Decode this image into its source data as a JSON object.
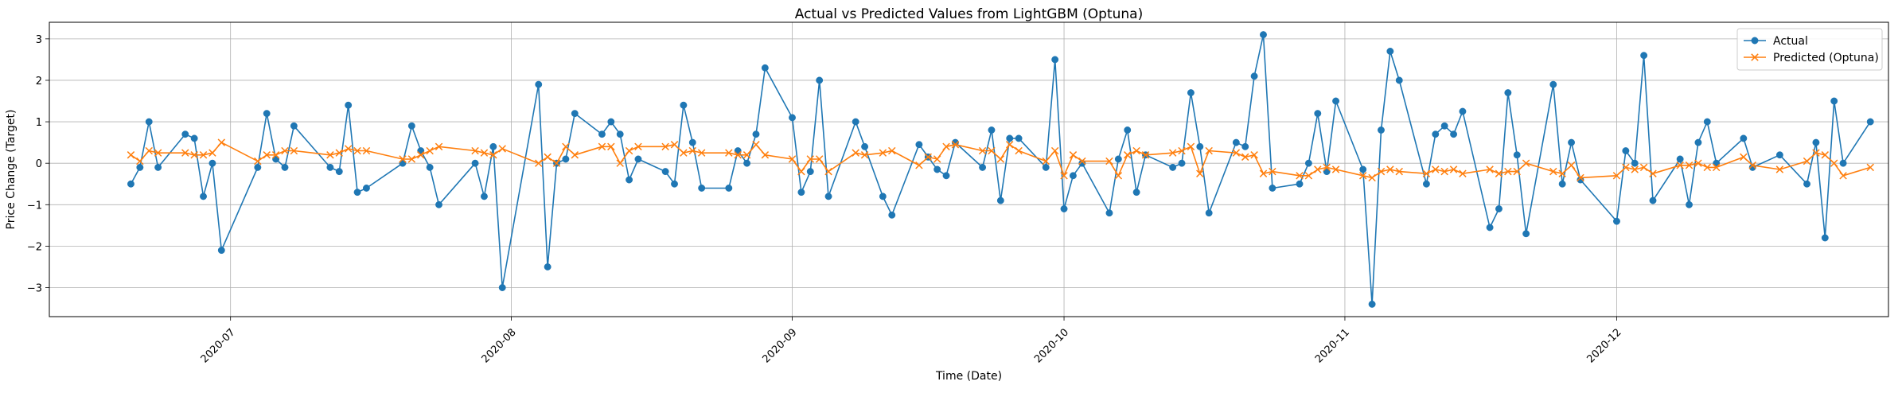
{
  "chart_data": {
    "type": "line",
    "title": "Actual vs Predicted Values from LightGBM (Optuna)",
    "xlabel": "Time (Date)",
    "ylabel": "Price Change (Target)",
    "x_type": "date",
    "xlim": [
      "2020-06-11",
      "2020-12-31"
    ],
    "ylim": [
      -3.7,
      3.4
    ],
    "x_ticks": [
      "2020-07-01",
      "2020-08-01",
      "2020-09-01",
      "2020-10-01",
      "2020-11-01",
      "2020-12-01"
    ],
    "x_tick_labels": [
      "2020-07",
      "2020-08",
      "2020-09",
      "2020-10",
      "2020-11",
      "2020-12"
    ],
    "y_ticks": [
      -3,
      -2,
      -1,
      0,
      1,
      2,
      3
    ],
    "y_tick_labels": [
      "−3",
      "−2",
      "−1",
      "0",
      "1",
      "2",
      "3"
    ],
    "grid": true,
    "legend_position": "upper-right",
    "series": [
      {
        "name": "Actual",
        "color": "#1f77b4",
        "marker": "circle",
        "points": [
          [
            "2020-06-20",
            -0.5
          ],
          [
            "2020-06-21",
            -0.1
          ],
          [
            "2020-06-22",
            1.0
          ],
          [
            "2020-06-23",
            -0.1
          ],
          [
            "2020-06-26",
            0.7
          ],
          [
            "2020-06-27",
            0.6
          ],
          [
            "2020-06-28",
            -0.8
          ],
          [
            "2020-06-29",
            0.0
          ],
          [
            "2020-06-30",
            -2.1
          ],
          [
            "2020-07-04",
            -0.1
          ],
          [
            "2020-07-05",
            1.2
          ],
          [
            "2020-07-06",
            0.1
          ],
          [
            "2020-07-07",
            -0.1
          ],
          [
            "2020-07-08",
            0.9
          ],
          [
            "2020-07-12",
            -0.1
          ],
          [
            "2020-07-13",
            -0.2
          ],
          [
            "2020-07-14",
            1.4
          ],
          [
            "2020-07-15",
            -0.7
          ],
          [
            "2020-07-16",
            -0.6
          ],
          [
            "2020-07-20",
            0.0
          ],
          [
            "2020-07-21",
            0.9
          ],
          [
            "2020-07-22",
            0.3
          ],
          [
            "2020-07-23",
            -0.1
          ],
          [
            "2020-07-24",
            -1.0
          ],
          [
            "2020-07-28",
            0.0
          ],
          [
            "2020-07-29",
            -0.8
          ],
          [
            "2020-07-30",
            0.4
          ],
          [
            "2020-07-31",
            -3.0
          ],
          [
            "2020-08-04",
            1.9
          ],
          [
            "2020-08-05",
            -2.5
          ],
          [
            "2020-08-06",
            0.0
          ],
          [
            "2020-08-07",
            0.1
          ],
          [
            "2020-08-08",
            1.2
          ],
          [
            "2020-08-11",
            0.7
          ],
          [
            "2020-08-12",
            1.0
          ],
          [
            "2020-08-13",
            0.7
          ],
          [
            "2020-08-14",
            -0.4
          ],
          [
            "2020-08-15",
            0.1
          ],
          [
            "2020-08-18",
            -0.2
          ],
          [
            "2020-08-19",
            -0.5
          ],
          [
            "2020-08-20",
            1.4
          ],
          [
            "2020-08-21",
            0.5
          ],
          [
            "2020-08-22",
            -0.6
          ],
          [
            "2020-08-25",
            -0.6
          ],
          [
            "2020-08-26",
            0.3
          ],
          [
            "2020-08-27",
            0.0
          ],
          [
            "2020-08-28",
            0.7
          ],
          [
            "2020-08-29",
            2.3
          ],
          [
            "2020-09-01",
            1.1
          ],
          [
            "2020-09-02",
            -0.7
          ],
          [
            "2020-09-03",
            -0.2
          ],
          [
            "2020-09-04",
            2.0
          ],
          [
            "2020-09-05",
            -0.8
          ],
          [
            "2020-09-08",
            1.0
          ],
          [
            "2020-09-09",
            0.4
          ],
          [
            "2020-09-11",
            -0.8
          ],
          [
            "2020-09-12",
            -1.25
          ],
          [
            "2020-09-15",
            0.45
          ],
          [
            "2020-09-16",
            0.15
          ],
          [
            "2020-09-17",
            -0.15
          ],
          [
            "2020-09-18",
            -0.3
          ],
          [
            "2020-09-19",
            0.5
          ],
          [
            "2020-09-22",
            -0.1
          ],
          [
            "2020-09-23",
            0.8
          ],
          [
            "2020-09-24",
            -0.9
          ],
          [
            "2020-09-25",
            0.6
          ],
          [
            "2020-09-26",
            0.6
          ],
          [
            "2020-09-29",
            -0.1
          ],
          [
            "2020-09-30",
            2.5
          ],
          [
            "2020-10-01",
            -1.1
          ],
          [
            "2020-10-02",
            -0.3
          ],
          [
            "2020-10-03",
            0.0
          ],
          [
            "2020-10-06",
            -1.2
          ],
          [
            "2020-10-07",
            0.1
          ],
          [
            "2020-10-08",
            0.8
          ],
          [
            "2020-10-09",
            -0.7
          ],
          [
            "2020-10-10",
            0.2
          ],
          [
            "2020-10-13",
            -0.1
          ],
          [
            "2020-10-14",
            0.0
          ],
          [
            "2020-10-15",
            1.7
          ],
          [
            "2020-10-16",
            0.4
          ],
          [
            "2020-10-17",
            -1.2
          ],
          [
            "2020-10-20",
            0.5
          ],
          [
            "2020-10-21",
            0.4
          ],
          [
            "2020-10-22",
            2.1
          ],
          [
            "2020-10-23",
            3.1
          ],
          [
            "2020-10-24",
            -0.6
          ],
          [
            "2020-10-27",
            -0.5
          ],
          [
            "2020-10-28",
            0.0
          ],
          [
            "2020-10-29",
            1.2
          ],
          [
            "2020-10-30",
            -0.2
          ],
          [
            "2020-10-31",
            1.5
          ],
          [
            "2020-11-03",
            -0.15
          ],
          [
            "2020-11-04",
            -3.4
          ],
          [
            "2020-11-05",
            0.8
          ],
          [
            "2020-11-06",
            2.7
          ],
          [
            "2020-11-07",
            2.0
          ],
          [
            "2020-11-10",
            -0.5
          ],
          [
            "2020-11-11",
            0.7
          ],
          [
            "2020-11-12",
            0.9
          ],
          [
            "2020-11-13",
            0.7
          ],
          [
            "2020-11-14",
            1.25
          ],
          [
            "2020-11-17",
            -1.55
          ],
          [
            "2020-11-18",
            -1.1
          ],
          [
            "2020-11-19",
            1.7
          ],
          [
            "2020-11-20",
            0.2
          ],
          [
            "2020-11-21",
            -1.7
          ],
          [
            "2020-11-24",
            1.9
          ],
          [
            "2020-11-25",
            -0.5
          ],
          [
            "2020-11-26",
            0.5
          ],
          [
            "2020-11-27",
            -0.4
          ],
          [
            "2020-12-01",
            -1.4
          ],
          [
            "2020-12-02",
            0.3
          ],
          [
            "2020-12-03",
            0.0
          ],
          [
            "2020-12-04",
            2.6
          ],
          [
            "2020-12-05",
            -0.9
          ],
          [
            "2020-12-08",
            0.1
          ],
          [
            "2020-12-09",
            -1.0
          ],
          [
            "2020-12-10",
            0.5
          ],
          [
            "2020-12-11",
            1.0
          ],
          [
            "2020-12-12",
            0.0
          ],
          [
            "2020-12-15",
            0.6
          ],
          [
            "2020-12-16",
            -0.1
          ],
          [
            "2020-12-19",
            0.2
          ],
          [
            "2020-12-22",
            -0.5
          ],
          [
            "2020-12-23",
            0.5
          ],
          [
            "2020-12-24",
            -1.8
          ],
          [
            "2020-12-25",
            1.5
          ],
          [
            "2020-12-26",
            0.0
          ],
          [
            "2020-12-29",
            1.0
          ]
        ]
      },
      {
        "name": "Predicted (Optuna)",
        "color": "#ff7f0e",
        "marker": "x",
        "points": [
          [
            "2020-06-20",
            0.2
          ],
          [
            "2020-06-21",
            0.05
          ],
          [
            "2020-06-22",
            0.3
          ],
          [
            "2020-06-23",
            0.25
          ],
          [
            "2020-06-26",
            0.25
          ],
          [
            "2020-06-27",
            0.2
          ],
          [
            "2020-06-28",
            0.2
          ],
          [
            "2020-06-29",
            0.25
          ],
          [
            "2020-06-30",
            0.5
          ],
          [
            "2020-07-04",
            0.05
          ],
          [
            "2020-07-05",
            0.2
          ],
          [
            "2020-07-06",
            0.2
          ],
          [
            "2020-07-07",
            0.3
          ],
          [
            "2020-07-08",
            0.3
          ],
          [
            "2020-07-12",
            0.2
          ],
          [
            "2020-07-13",
            0.25
          ],
          [
            "2020-07-14",
            0.35
          ],
          [
            "2020-07-15",
            0.3
          ],
          [
            "2020-07-16",
            0.3
          ],
          [
            "2020-07-20",
            0.1
          ],
          [
            "2020-07-21",
            0.1
          ],
          [
            "2020-07-22",
            0.2
          ],
          [
            "2020-07-23",
            0.3
          ],
          [
            "2020-07-24",
            0.4
          ],
          [
            "2020-07-28",
            0.3
          ],
          [
            "2020-07-29",
            0.25
          ],
          [
            "2020-07-30",
            0.2
          ],
          [
            "2020-07-31",
            0.35
          ],
          [
            "2020-08-04",
            0.0
          ],
          [
            "2020-08-05",
            0.15
          ],
          [
            "2020-08-06",
            0.0
          ],
          [
            "2020-08-07",
            0.4
          ],
          [
            "2020-08-08",
            0.2
          ],
          [
            "2020-08-11",
            0.4
          ],
          [
            "2020-08-12",
            0.4
          ],
          [
            "2020-08-13",
            0.0
          ],
          [
            "2020-08-14",
            0.3
          ],
          [
            "2020-08-15",
            0.4
          ],
          [
            "2020-08-18",
            0.4
          ],
          [
            "2020-08-19",
            0.45
          ],
          [
            "2020-08-20",
            0.25
          ],
          [
            "2020-08-21",
            0.3
          ],
          [
            "2020-08-22",
            0.25
          ],
          [
            "2020-08-25",
            0.25
          ],
          [
            "2020-08-26",
            0.2
          ],
          [
            "2020-08-27",
            0.2
          ],
          [
            "2020-08-28",
            0.45
          ],
          [
            "2020-08-29",
            0.2
          ],
          [
            "2020-09-01",
            0.1
          ],
          [
            "2020-09-02",
            -0.2
          ],
          [
            "2020-09-03",
            0.1
          ],
          [
            "2020-09-04",
            0.1
          ],
          [
            "2020-09-05",
            -0.2
          ],
          [
            "2020-09-08",
            0.25
          ],
          [
            "2020-09-09",
            0.2
          ],
          [
            "2020-09-11",
            0.25
          ],
          [
            "2020-09-12",
            0.3
          ],
          [
            "2020-09-15",
            -0.05
          ],
          [
            "2020-09-16",
            0.15
          ],
          [
            "2020-09-17",
            0.1
          ],
          [
            "2020-09-18",
            0.4
          ],
          [
            "2020-09-19",
            0.45
          ],
          [
            "2020-09-22",
            0.3
          ],
          [
            "2020-09-23",
            0.3
          ],
          [
            "2020-09-24",
            0.1
          ],
          [
            "2020-09-25",
            0.45
          ],
          [
            "2020-09-26",
            0.3
          ],
          [
            "2020-09-29",
            0.05
          ],
          [
            "2020-09-30",
            0.3
          ],
          [
            "2020-10-01",
            -0.3
          ],
          [
            "2020-10-02",
            0.2
          ],
          [
            "2020-10-03",
            0.05
          ],
          [
            "2020-10-06",
            0.05
          ],
          [
            "2020-10-07",
            -0.3
          ],
          [
            "2020-10-08",
            0.2
          ],
          [
            "2020-10-09",
            0.3
          ],
          [
            "2020-10-10",
            0.2
          ],
          [
            "2020-10-13",
            0.25
          ],
          [
            "2020-10-14",
            0.3
          ],
          [
            "2020-10-15",
            0.4
          ],
          [
            "2020-10-16",
            -0.25
          ],
          [
            "2020-10-17",
            0.3
          ],
          [
            "2020-10-20",
            0.25
          ],
          [
            "2020-10-21",
            0.15
          ],
          [
            "2020-10-22",
            0.2
          ],
          [
            "2020-10-23",
            -0.25
          ],
          [
            "2020-10-24",
            -0.2
          ],
          [
            "2020-10-27",
            -0.3
          ],
          [
            "2020-10-28",
            -0.3
          ],
          [
            "2020-10-29",
            -0.15
          ],
          [
            "2020-10-30",
            -0.1
          ],
          [
            "2020-10-31",
            -0.15
          ],
          [
            "2020-11-03",
            -0.3
          ],
          [
            "2020-11-04",
            -0.35
          ],
          [
            "2020-11-05",
            -0.2
          ],
          [
            "2020-11-06",
            -0.15
          ],
          [
            "2020-11-07",
            -0.2
          ],
          [
            "2020-11-10",
            -0.25
          ],
          [
            "2020-11-11",
            -0.15
          ],
          [
            "2020-11-12",
            -0.2
          ],
          [
            "2020-11-13",
            -0.15
          ],
          [
            "2020-11-14",
            -0.25
          ],
          [
            "2020-11-17",
            -0.15
          ],
          [
            "2020-11-18",
            -0.25
          ],
          [
            "2020-11-19",
            -0.2
          ],
          [
            "2020-11-20",
            -0.2
          ],
          [
            "2020-11-21",
            0.0
          ],
          [
            "2020-11-24",
            -0.2
          ],
          [
            "2020-11-25",
            -0.25
          ],
          [
            "2020-11-26",
            -0.05
          ],
          [
            "2020-11-27",
            -0.35
          ],
          [
            "2020-12-01",
            -0.3
          ],
          [
            "2020-12-02",
            -0.1
          ],
          [
            "2020-12-03",
            -0.15
          ],
          [
            "2020-12-04",
            -0.1
          ],
          [
            "2020-12-05",
            -0.25
          ],
          [
            "2020-12-08",
            -0.05
          ],
          [
            "2020-12-09",
            -0.05
          ],
          [
            "2020-12-10",
            0.0
          ],
          [
            "2020-12-11",
            -0.1
          ],
          [
            "2020-12-12",
            -0.1
          ],
          [
            "2020-12-15",
            0.15
          ],
          [
            "2020-12-16",
            -0.05
          ],
          [
            "2020-12-19",
            -0.15
          ],
          [
            "2020-12-22",
            0.05
          ],
          [
            "2020-12-23",
            0.25
          ],
          [
            "2020-12-24",
            0.2
          ],
          [
            "2020-12-25",
            0.0
          ],
          [
            "2020-12-26",
            -0.3
          ],
          [
            "2020-12-29",
            -0.1
          ]
        ]
      }
    ]
  }
}
